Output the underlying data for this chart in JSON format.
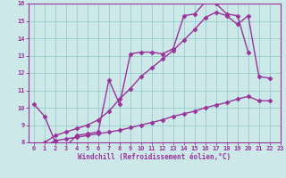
{
  "line1_x": [
    0,
    1,
    2,
    3,
    4,
    5,
    6,
    7,
    8,
    9,
    10,
    11,
    12,
    13,
    14,
    15,
    16,
    17,
    18,
    19,
    20
  ],
  "line1_y": [
    10.2,
    9.5,
    8.0,
    7.8,
    8.4,
    8.5,
    8.6,
    11.6,
    10.2,
    13.1,
    13.2,
    13.2,
    13.1,
    13.4,
    15.3,
    15.4,
    16.1,
    16.0,
    15.4,
    15.3,
    13.2
  ],
  "line2_x": [
    1,
    2,
    3,
    4,
    5,
    6,
    7,
    8,
    9,
    10,
    11,
    12,
    13,
    14,
    15,
    16,
    17,
    18,
    19,
    20,
    21,
    22
  ],
  "line2_y": [
    8.0,
    8.4,
    8.6,
    8.8,
    9.0,
    9.3,
    9.8,
    10.5,
    11.1,
    11.8,
    12.3,
    12.8,
    13.3,
    13.9,
    14.5,
    15.2,
    15.5,
    15.3,
    14.8,
    15.3,
    11.8,
    11.7
  ],
  "line3_x": [
    1,
    2,
    3,
    4,
    5,
    6,
    7,
    8,
    9,
    10,
    11,
    12,
    13,
    14,
    15,
    16,
    17,
    18,
    19,
    20,
    21,
    22
  ],
  "line3_y": [
    7.8,
    8.1,
    8.2,
    8.3,
    8.4,
    8.5,
    8.6,
    8.7,
    8.85,
    9.0,
    9.15,
    9.3,
    9.5,
    9.65,
    9.8,
    10.0,
    10.15,
    10.3,
    10.5,
    10.65,
    10.4,
    10.4
  ],
  "color": "#993399",
  "bg_color": "#cce8e8",
  "grid_color": "#99cccc",
  "xlabel": "Windchill (Refroidissement éolien,°C)",
  "xlim": [
    -0.5,
    23
  ],
  "ylim": [
    8,
    16
  ],
  "yticks": [
    8,
    9,
    10,
    11,
    12,
    13,
    14,
    15,
    16
  ],
  "xticks": [
    0,
    1,
    2,
    3,
    4,
    5,
    6,
    7,
    8,
    9,
    10,
    11,
    12,
    13,
    14,
    15,
    16,
    17,
    18,
    19,
    20,
    21,
    22,
    23
  ],
  "marker": "D",
  "markersize": 2.5,
  "linewidth": 1.0
}
